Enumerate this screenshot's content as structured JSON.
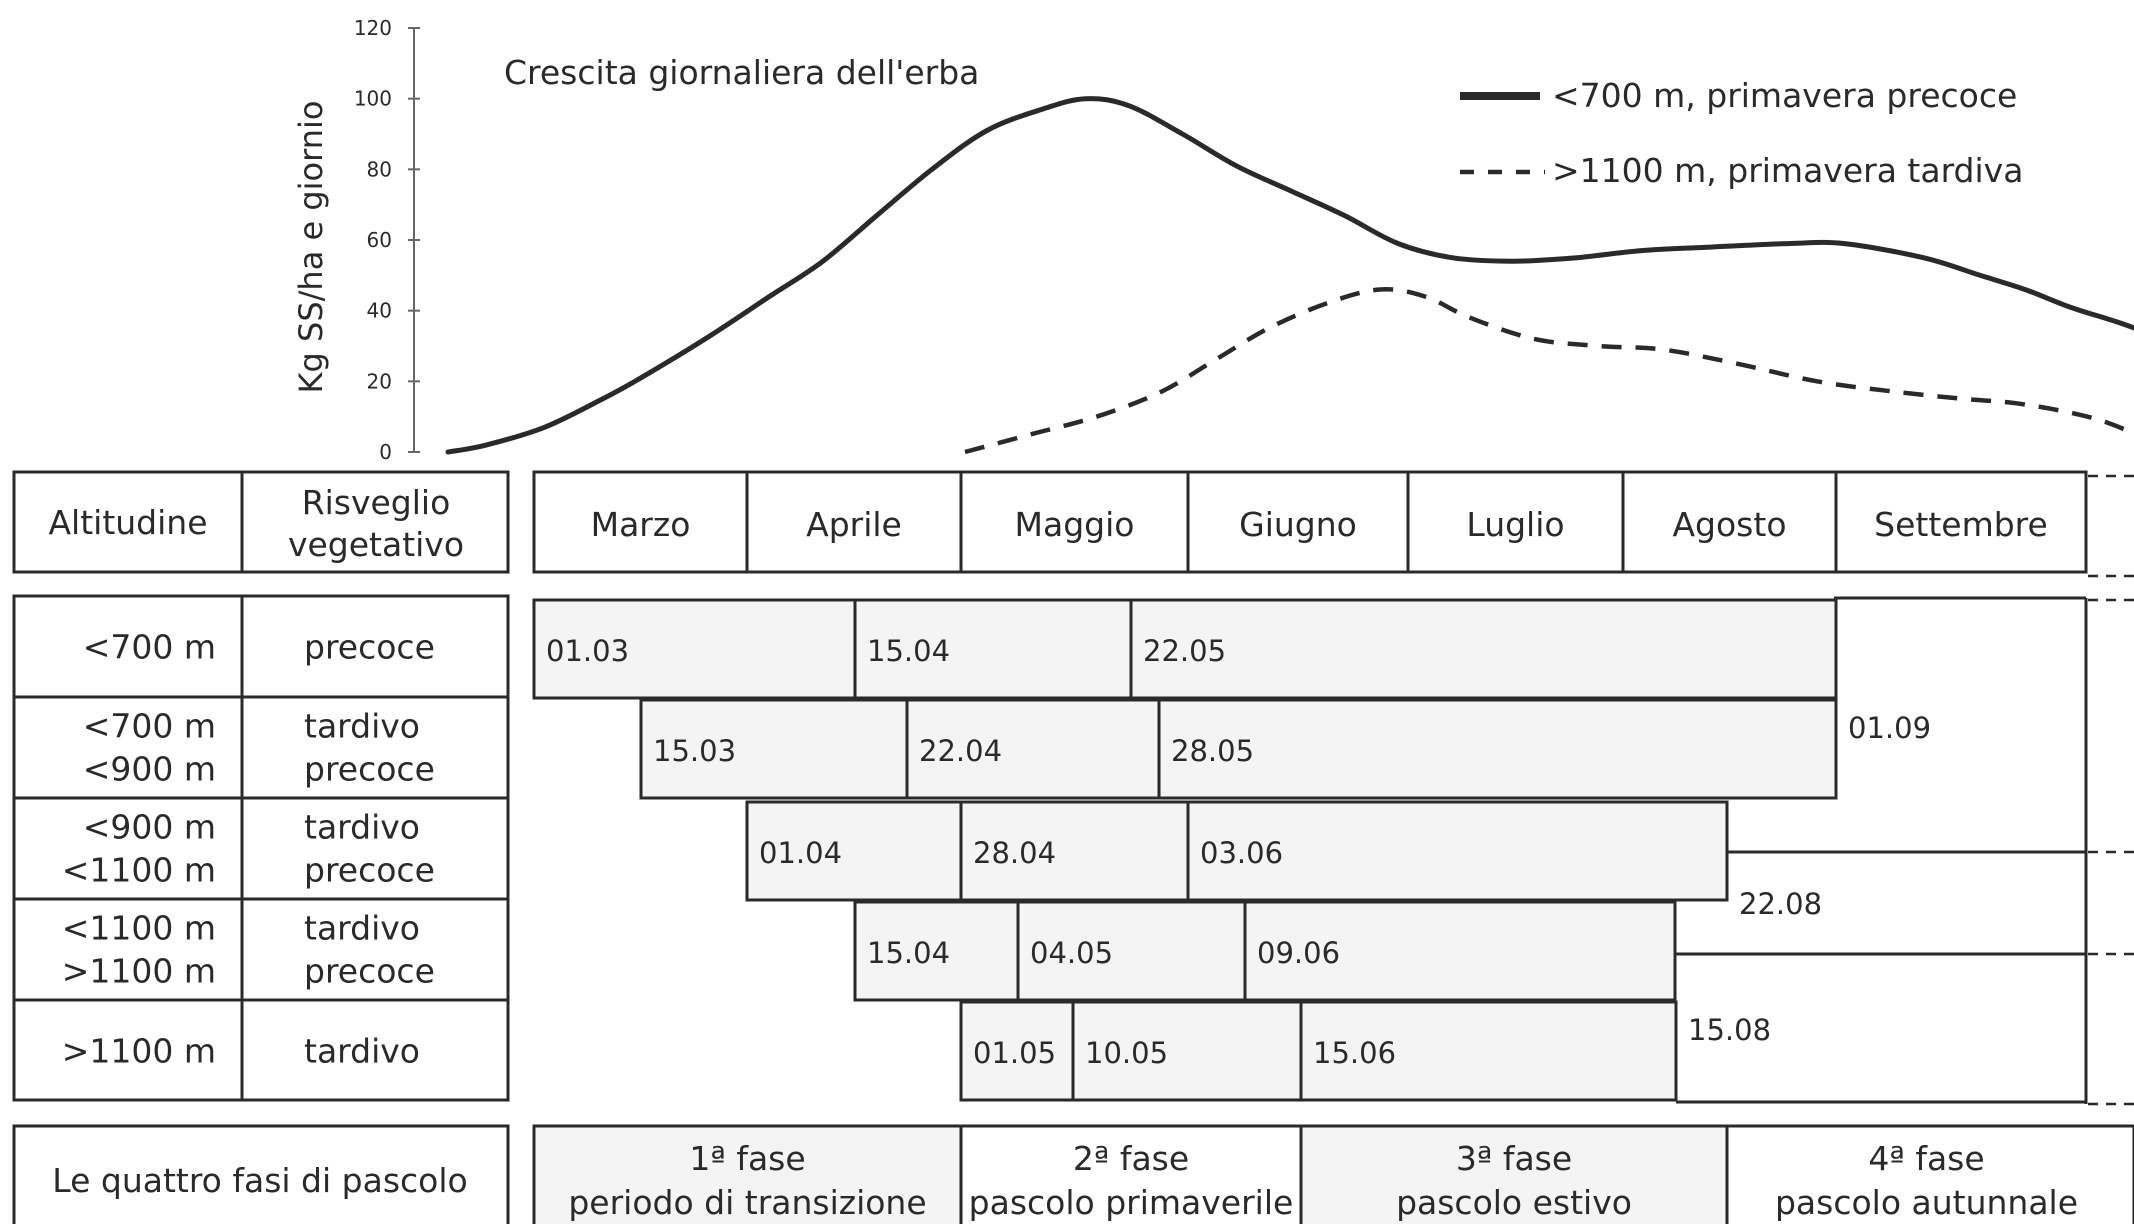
{
  "chart_data": {
    "type": "line",
    "title": "Crescita giornaliera dell'erba",
    "ylabel": "Kg SS/ha e giornio",
    "ylim": [
      0,
      120
    ],
    "yticks": [
      0,
      20,
      40,
      60,
      80,
      100,
      120
    ],
    "x_unit": "month index (0 = start of March, 7 = end of September)",
    "series": [
      {
        "name": "<700 m, primavera precoce",
        "style": "solid",
        "points": [
          [
            0.0,
            0
          ],
          [
            0.2,
            2
          ],
          [
            0.5,
            7
          ],
          [
            0.8,
            15
          ],
          [
            1.0,
            21
          ],
          [
            1.3,
            32
          ],
          [
            1.6,
            44
          ],
          [
            1.85,
            54
          ],
          [
            2.1,
            67
          ],
          [
            2.35,
            80
          ],
          [
            2.6,
            91
          ],
          [
            2.85,
            97
          ],
          [
            3.05,
            100
          ],
          [
            3.25,
            98
          ],
          [
            3.5,
            90
          ],
          [
            3.75,
            81
          ],
          [
            4.0,
            74
          ],
          [
            4.3,
            67
          ],
          [
            4.6,
            59
          ],
          [
            4.9,
            55
          ],
          [
            5.2,
            54
          ],
          [
            5.5,
            55
          ],
          [
            5.8,
            57
          ],
          [
            6.1,
            58
          ],
          [
            6.4,
            59
          ],
          [
            6.6,
            59
          ],
          [
            6.9,
            55
          ],
          [
            7.2,
            50
          ],
          [
            7.5,
            46
          ],
          [
            7.8,
            41
          ],
          [
            8.1,
            37
          ],
          [
            8.3,
            34
          ]
        ]
      },
      {
        "name": ">1100 m, primavera tardiva",
        "style": "dashed",
        "points": [
          [
            2.5,
            0
          ],
          [
            2.8,
            5
          ],
          [
            3.1,
            10
          ],
          [
            3.4,
            17
          ],
          [
            3.65,
            26
          ],
          [
            3.9,
            35
          ],
          [
            4.2,
            42
          ],
          [
            4.5,
            46
          ],
          [
            4.75,
            44
          ],
          [
            5.0,
            38
          ],
          [
            5.3,
            32
          ],
          [
            5.6,
            30
          ],
          [
            5.9,
            29
          ],
          [
            6.2,
            25
          ],
          [
            6.5,
            20
          ],
          [
            6.8,
            17
          ],
          [
            7.1,
            15
          ],
          [
            7.4,
            14
          ],
          [
            7.7,
            12
          ],
          [
            8.0,
            9
          ],
          [
            8.3,
            4
          ]
        ]
      }
    ]
  },
  "table": {
    "header": {
      "altitudine": "Altitudine",
      "risveglio": [
        "Risveglio",
        "vegetativo"
      ],
      "months": [
        "Marzo",
        "Aprile",
        "Maggio",
        "Giugno",
        "Luglio",
        "Agosto",
        "Settembre"
      ]
    },
    "rows": [
      {
        "alt": [
          "<700 m"
        ],
        "ris": [
          "precoce"
        ],
        "dates": [
          "01.03",
          "15.04",
          "22.05"
        ]
      },
      {
        "alt": [
          "<700 m",
          "<900 m"
        ],
        "ris": [
          "tardivo",
          "precoce"
        ],
        "dates": [
          "15.03",
          "22.04",
          "28.05"
        ]
      },
      {
        "alt": [
          "<900 m",
          "<1100 m"
        ],
        "ris": [
          "tardivo",
          "precoce"
        ],
        "dates": [
          "01.04",
          "28.04",
          "03.06"
        ]
      },
      {
        "alt": [
          "<1100 m",
          ">1100 m"
        ],
        "ris": [
          "tardivo",
          "precoce"
        ],
        "dates": [
          "15.04",
          "04.05",
          "09.06"
        ]
      },
      {
        "alt": [
          ">1100 m"
        ],
        "ris": [
          "tardivo"
        ],
        "dates": [
          "01.05",
          "10.05",
          "15.06"
        ]
      }
    ],
    "autumn_dates": [
      "01.09",
      "22.08",
      "15.08"
    ],
    "phases": {
      "label": "Le quattro fasi di pascolo",
      "items": [
        {
          "title": "1ª fase",
          "desc": "periodo di transizione"
        },
        {
          "title": "2ª fase",
          "desc": "pascolo primaverile"
        },
        {
          "title": "3ª fase",
          "desc": "pascolo estivo"
        },
        {
          "title": "4ª fase",
          "desc": "pascolo autunnale"
        }
      ]
    }
  },
  "colors": {
    "ink": "#2a2a2a",
    "cell_gray": "#f4f4f4",
    "background": "#ffffff"
  }
}
